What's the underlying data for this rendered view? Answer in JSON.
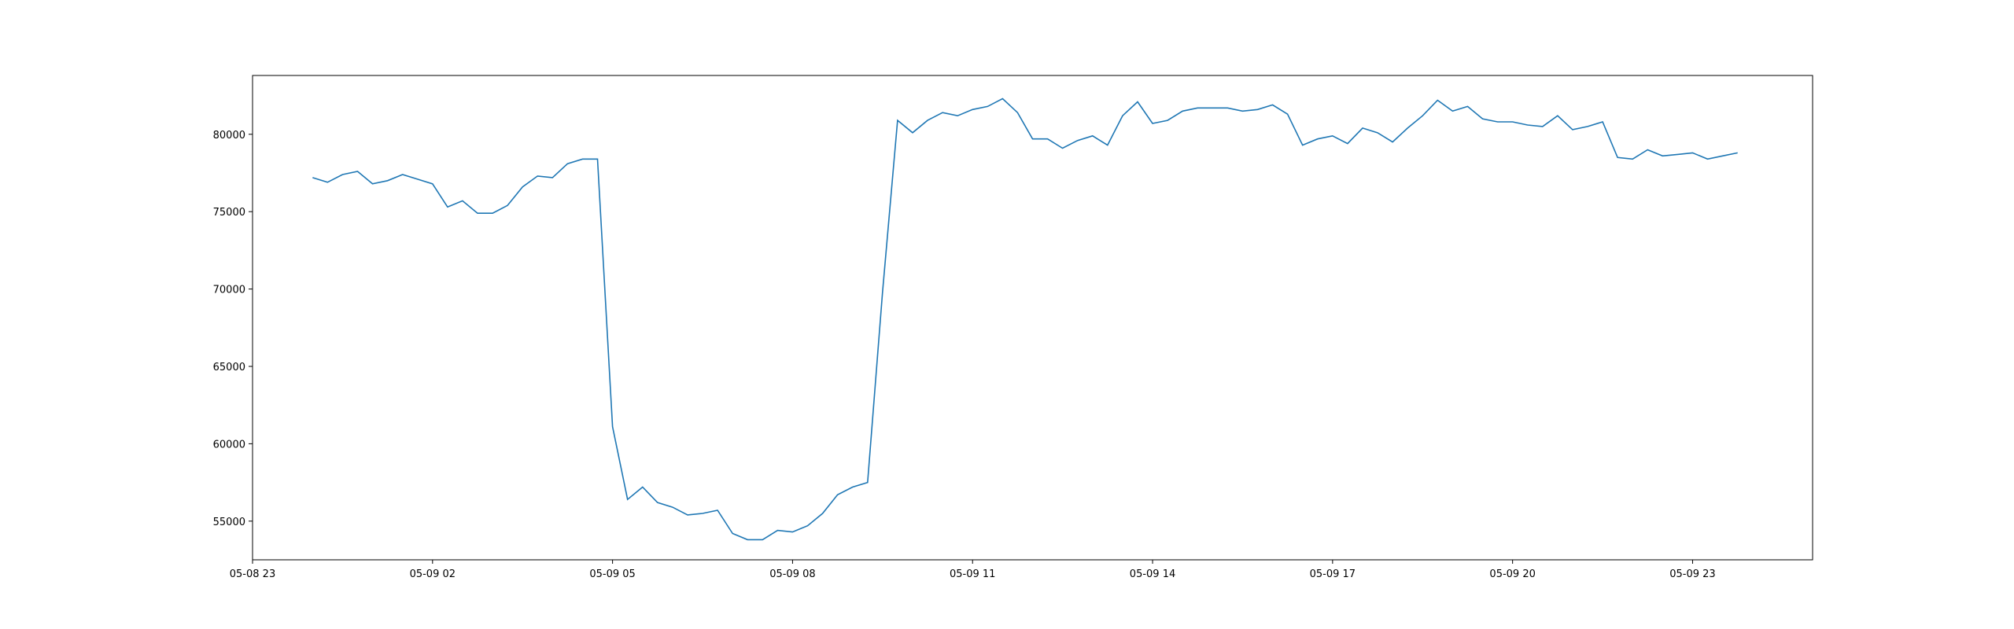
{
  "chart_data": {
    "type": "line",
    "title": "",
    "xlabel": "",
    "ylabel": "",
    "grid": false,
    "legend": "none",
    "xlim": [
      "2025-05-08 23:00",
      "2025-05-10 01:00"
    ],
    "ylim": [
      52500,
      83800
    ],
    "x_ticks": [
      {
        "t": "2025-05-08 23:00",
        "label": "05-08 23"
      },
      {
        "t": "2025-05-09 02:00",
        "label": "05-09 02"
      },
      {
        "t": "2025-05-09 05:00",
        "label": "05-09 05"
      },
      {
        "t": "2025-05-09 08:00",
        "label": "05-09 08"
      },
      {
        "t": "2025-05-09 11:00",
        "label": "05-09 11"
      },
      {
        "t": "2025-05-09 14:00",
        "label": "05-09 14"
      },
      {
        "t": "2025-05-09 17:00",
        "label": "05-09 17"
      },
      {
        "t": "2025-05-09 20:00",
        "label": "05-09 20"
      },
      {
        "t": "2025-05-09 23:00",
        "label": "05-09 23"
      }
    ],
    "y_ticks": [
      {
        "value": 55000,
        "label": "55000"
      },
      {
        "value": 60000,
        "label": "60000"
      },
      {
        "value": 65000,
        "label": "65000"
      },
      {
        "value": 70000,
        "label": "70000"
      },
      {
        "value": 75000,
        "label": "75000"
      },
      {
        "value": 80000,
        "label": "80000"
      }
    ],
    "series": [
      {
        "color": "#1f77b4",
        "x": [
          "2025-05-09 00:00",
          "2025-05-09 00:15",
          "2025-05-09 00:30",
          "2025-05-09 00:45",
          "2025-05-09 01:00",
          "2025-05-09 01:15",
          "2025-05-09 01:30",
          "2025-05-09 01:45",
          "2025-05-09 02:00",
          "2025-05-09 02:15",
          "2025-05-09 02:30",
          "2025-05-09 02:45",
          "2025-05-09 03:00",
          "2025-05-09 03:15",
          "2025-05-09 03:30",
          "2025-05-09 03:45",
          "2025-05-09 04:00",
          "2025-05-09 04:15",
          "2025-05-09 04:30",
          "2025-05-09 04:45",
          "2025-05-09 05:00",
          "2025-05-09 05:15",
          "2025-05-09 05:30",
          "2025-05-09 05:45",
          "2025-05-09 06:00",
          "2025-05-09 06:15",
          "2025-05-09 06:30",
          "2025-05-09 06:45",
          "2025-05-09 07:00",
          "2025-05-09 07:15",
          "2025-05-09 07:30",
          "2025-05-09 07:45",
          "2025-05-09 08:00",
          "2025-05-09 08:15",
          "2025-05-09 08:30",
          "2025-05-09 08:45",
          "2025-05-09 09:00",
          "2025-05-09 09:15",
          "2025-05-09 09:30",
          "2025-05-09 09:45",
          "2025-05-09 10:00",
          "2025-05-09 10:15",
          "2025-05-09 10:30",
          "2025-05-09 10:45",
          "2025-05-09 11:00",
          "2025-05-09 11:15",
          "2025-05-09 11:30",
          "2025-05-09 11:45",
          "2025-05-09 12:00",
          "2025-05-09 12:15",
          "2025-05-09 12:30",
          "2025-05-09 12:45",
          "2025-05-09 13:00",
          "2025-05-09 13:15",
          "2025-05-09 13:30",
          "2025-05-09 13:45",
          "2025-05-09 14:00",
          "2025-05-09 14:15",
          "2025-05-09 14:30",
          "2025-05-09 14:45",
          "2025-05-09 15:00",
          "2025-05-09 15:15",
          "2025-05-09 15:30",
          "2025-05-09 15:45",
          "2025-05-09 16:00",
          "2025-05-09 16:15",
          "2025-05-09 16:30",
          "2025-05-09 16:45",
          "2025-05-09 17:00",
          "2025-05-09 17:15",
          "2025-05-09 17:30",
          "2025-05-09 17:45",
          "2025-05-09 18:00",
          "2025-05-09 18:15",
          "2025-05-09 18:30",
          "2025-05-09 18:45",
          "2025-05-09 19:00",
          "2025-05-09 19:15",
          "2025-05-09 19:30",
          "2025-05-09 19:45",
          "2025-05-09 20:00",
          "2025-05-09 20:15",
          "2025-05-09 20:30",
          "2025-05-09 20:45",
          "2025-05-09 21:00",
          "2025-05-09 21:15",
          "2025-05-09 21:30",
          "2025-05-09 21:45",
          "2025-05-09 22:00",
          "2025-05-09 22:15",
          "2025-05-09 22:30",
          "2025-05-09 22:45",
          "2025-05-09 23:00",
          "2025-05-09 23:15",
          "2025-05-09 23:30",
          "2025-05-09 23:45"
        ],
        "y": [
          77200,
          76900,
          77400,
          77600,
          76800,
          77000,
          77400,
          77100,
          76800,
          75300,
          75700,
          74900,
          74900,
          75400,
          76600,
          77300,
          77200,
          78100,
          78400,
          78400,
          61100,
          56400,
          57200,
          56200,
          55900,
          55400,
          55500,
          55700,
          54200,
          53800,
          53800,
          54400,
          54300,
          54700,
          55500,
          56700,
          57200,
          57500,
          69800,
          80900,
          80100,
          80900,
          81400,
          81200,
          81600,
          81800,
          82300,
          81400,
          79700,
          79700,
          79100,
          79600,
          79900,
          79300,
          81200,
          82100,
          80700,
          80900,
          81500,
          81700,
          81700,
          81700,
          81500,
          81600,
          81900,
          81300,
          79300,
          79700,
          79900,
          79400,
          80400,
          80100,
          79500,
          80400,
          81200,
          82200,
          81500,
          81800,
          81000,
          80800,
          80800,
          80600,
          80500,
          81200,
          80300,
          80500,
          80800,
          78500,
          78400,
          79000,
          78600,
          78700,
          78800,
          78400,
          78600,
          78800
        ]
      }
    ]
  }
}
